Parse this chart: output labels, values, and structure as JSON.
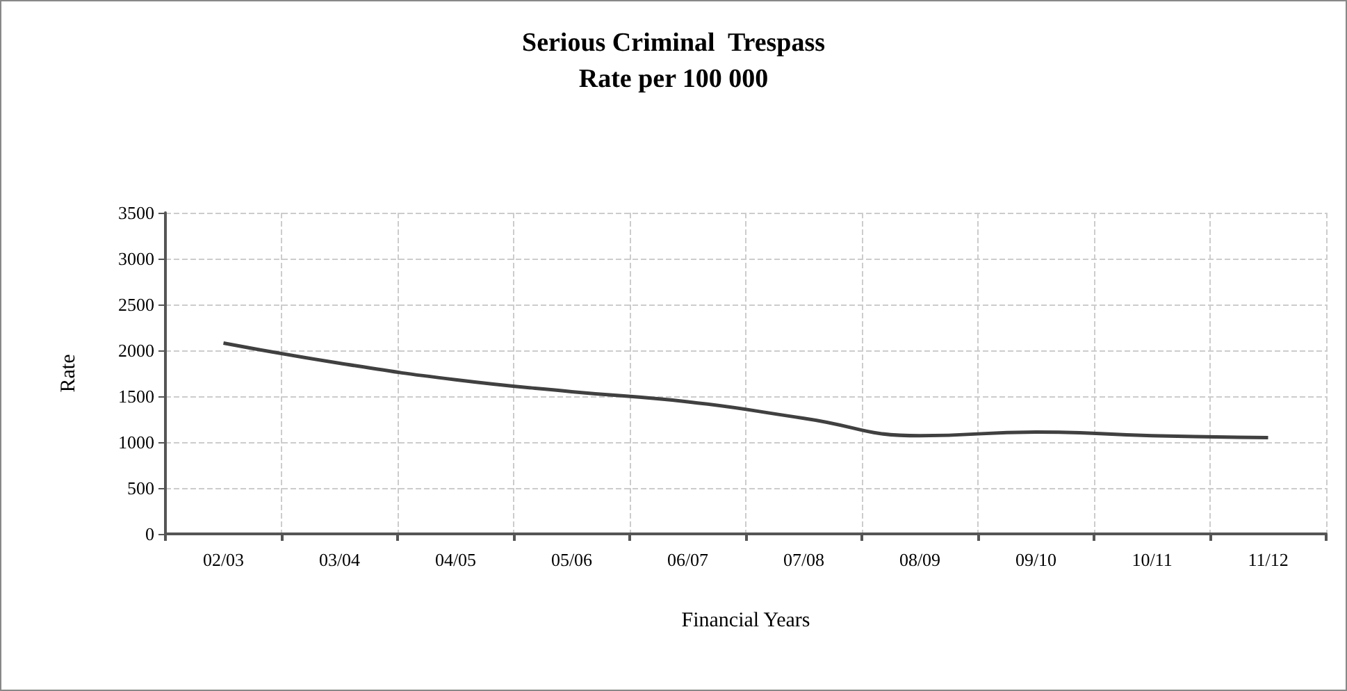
{
  "chart_data": {
    "type": "line",
    "title": "Serious Criminal  Trespass\nRate per 100 000",
    "xlabel": "Financial Years",
    "ylabel": "Rate",
    "categories": [
      "02/03",
      "03/04",
      "04/05",
      "05/06",
      "06/07",
      "07/08",
      "08/09",
      "09/10",
      "10/11",
      "11/12"
    ],
    "series": [
      {
        "color": "#404040",
        "values": [
          2080,
          1860,
          1680,
          1550,
          1440,
          1260,
          1070,
          1110,
          1070,
          1050
        ]
      }
    ],
    "ylim": [
      0,
      3500
    ],
    "yticks": [
      0,
      500,
      1000,
      1500,
      2000,
      2500,
      3000,
      3500
    ],
    "grid": true,
    "marker": "none",
    "line_style": "solid"
  }
}
